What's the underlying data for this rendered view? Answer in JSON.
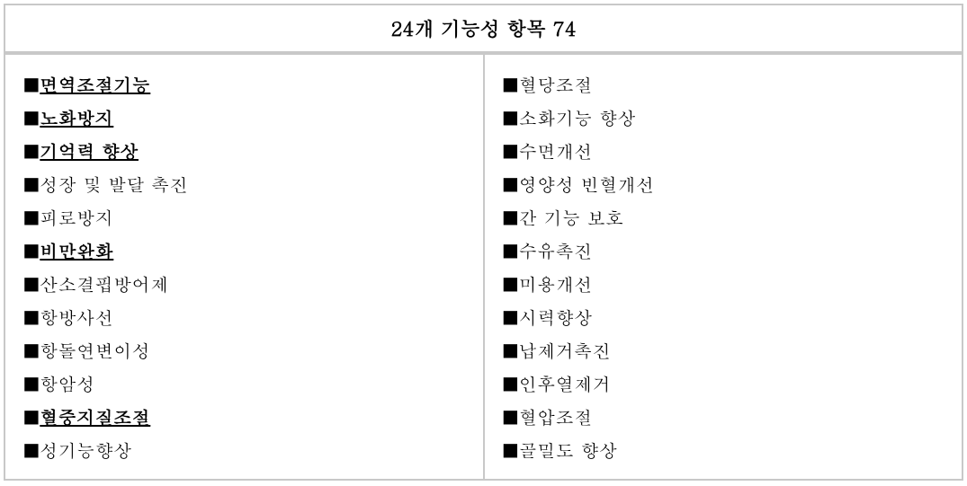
{
  "title": "24개 기능성 항목 74",
  "leftColumn": [
    {
      "text": "면역조절기능",
      "underlined": true
    },
    {
      "text": "노화방지",
      "underlined": true
    },
    {
      "text": "기억력 향상",
      "underlined": true
    },
    {
      "text": "성장 및 발달 촉진",
      "underlined": false
    },
    {
      "text": "피로방지",
      "underlined": false
    },
    {
      "text": "비만완화",
      "underlined": true
    },
    {
      "text": "산소결핍방어제",
      "underlined": false
    },
    {
      "text": "항방사선",
      "underlined": false
    },
    {
      "text": "항돌연변이성",
      "underlined": false
    },
    {
      "text": "항암성",
      "underlined": false
    },
    {
      "text": "혈중지질조절",
      "underlined": true
    },
    {
      "text": "성기능향상",
      "underlined": false
    }
  ],
  "rightColumn": [
    {
      "text": "혈당조절",
      "underlined": false
    },
    {
      "text": "소화기능 향상",
      "underlined": false
    },
    {
      "text": "수면개선",
      "underlined": false
    },
    {
      "text": "영양성 빈혈개선",
      "underlined": false
    },
    {
      "text": "간 기능 보호",
      "underlined": false
    },
    {
      "text": "수유촉진",
      "underlined": false
    },
    {
      "text": "미용개선",
      "underlined": false
    },
    {
      "text": "시력향상",
      "underlined": false
    },
    {
      "text": "납제거촉진",
      "underlined": false
    },
    {
      "text": "인후열제거",
      "underlined": false
    },
    {
      "text": "혈압조절",
      "underlined": false
    },
    {
      "text": "골밀도 향상",
      "underlined": false
    }
  ],
  "bullet": "■"
}
